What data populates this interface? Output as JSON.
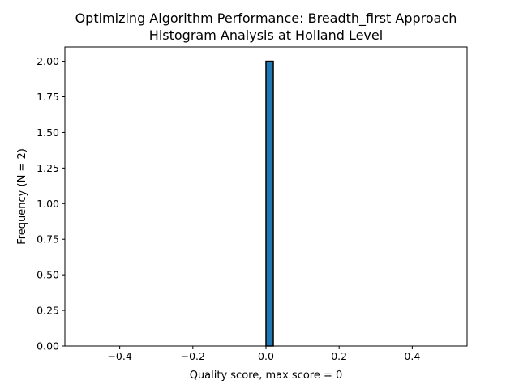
{
  "chart_data": {
    "type": "bar",
    "title_lines": [
      "Optimizing Algorithm Performance: Breadth_first Approach",
      "Histogram Analysis at Holland Level"
    ],
    "xlabel": "Quality score, max score = 0",
    "ylabel": "Frequency (N = 2)",
    "xlim": [
      -0.55,
      0.55
    ],
    "ylim": [
      0,
      2.1
    ],
    "x_ticks": [
      -0.4,
      -0.2,
      0.0,
      0.2,
      0.4
    ],
    "x_tick_labels": [
      "−0.4",
      "−0.2",
      "0.0",
      "0.2",
      "0.4"
    ],
    "y_ticks": [
      0.0,
      0.25,
      0.5,
      0.75,
      1.0,
      1.25,
      1.5,
      1.75,
      2.0
    ],
    "y_tick_labels": [
      "0.00",
      "0.25",
      "0.50",
      "0.75",
      "1.00",
      "1.25",
      "1.50",
      "1.75",
      "2.00"
    ],
    "bin_range": [
      -0.5,
      0.5
    ],
    "bin_count": 50,
    "counts": [
      0,
      0,
      0,
      0,
      0,
      0,
      0,
      0,
      0,
      0,
      0,
      0,
      0,
      0,
      0,
      0,
      0,
      0,
      0,
      0,
      0,
      0,
      0,
      0,
      0,
      2,
      0,
      0,
      0,
      0,
      0,
      0,
      0,
      0,
      0,
      0,
      0,
      0,
      0,
      0,
      0,
      0,
      0,
      0,
      0,
      0,
      0,
      0,
      0,
      0
    ],
    "grid": false,
    "legend": "none",
    "bar_color": "#1f77b4",
    "edge_color": "#000000"
  }
}
